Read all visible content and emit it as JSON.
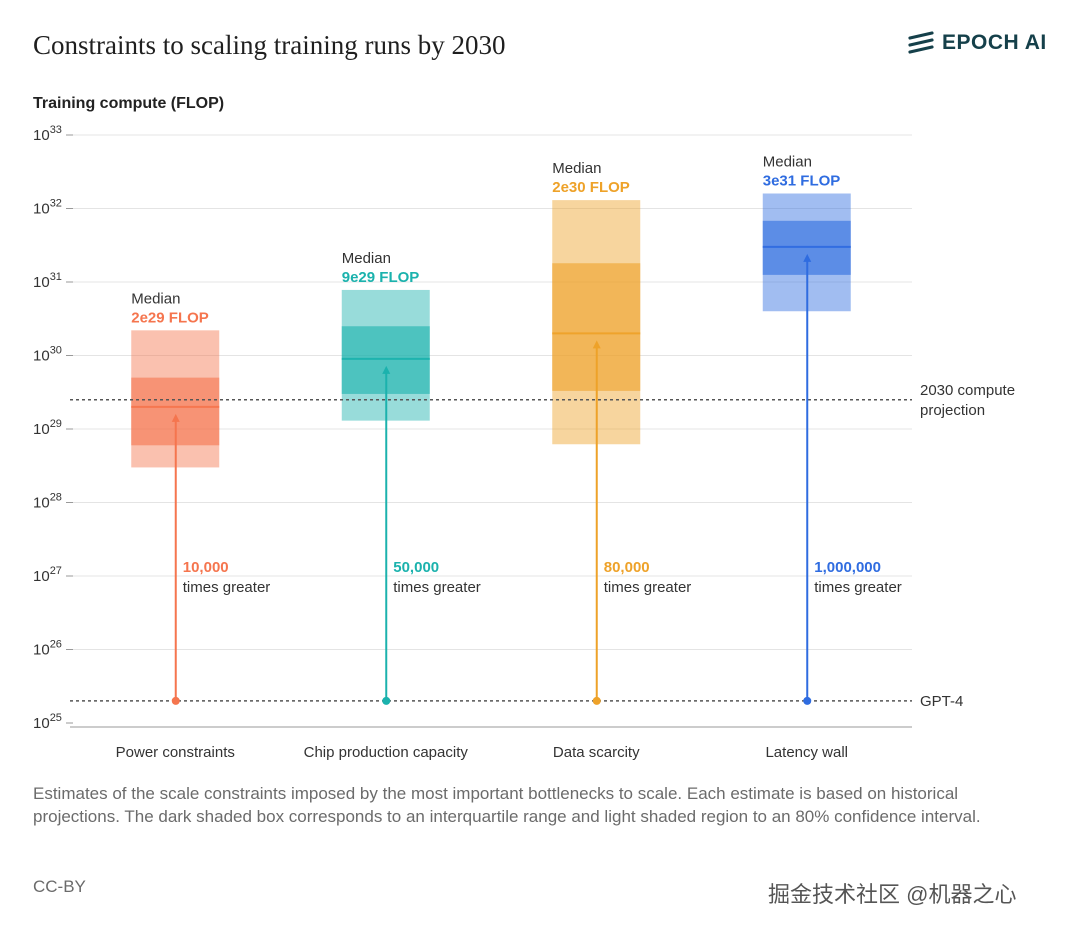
{
  "title": "Constraints to scaling training runs by 2030",
  "logo_text": "EPOCH AI",
  "caption": "Estimates of the scale constraints imposed by the most important bottlenecks to scale. Each estimate is based on historical projections. The dark shaded box corresponds to an interquartile range and light shaded region to an 80% confidence interval.",
  "license": "CC-BY",
  "watermark": "掘金技术社区 @机器之心",
  "chart_data": {
    "type": "box",
    "ylabel": "Training compute (FLOP)",
    "yscale": "log",
    "ylim_exponent": [
      25,
      33
    ],
    "yticks": [
      25,
      26,
      27,
      28,
      29,
      30,
      31,
      32,
      33
    ],
    "categories": [
      "Power constraints",
      "Chip production capacity",
      "Data scarcity",
      "Latency wall"
    ],
    "series": [
      {
        "category": "Power constraints",
        "color": "#f5754e",
        "median": 2e+29,
        "median_label": "2e29 FLOP",
        "iqr": [
          6e+28,
          5e+29
        ],
        "ci80": [
          3e+28,
          2.2e+30
        ],
        "multiplier": "10,000"
      },
      {
        "category": "Chip production capacity",
        "color": "#1bb2ad",
        "median": 9e+29,
        "median_label": "9e29 FLOP",
        "iqr": [
          3e+29,
          2.5e+30
        ],
        "ci80": [
          1.3e+29,
          7.8e+30
        ],
        "multiplier": "50,000"
      },
      {
        "category": "Data scarcity",
        "color": "#eea229",
        "median": 2e+30,
        "median_label": "2e30 FLOP",
        "iqr": [
          3.3e+29,
          1.8e+31
        ],
        "ci80": [
          6.2e+28,
          1.3e+32
        ],
        "multiplier": "80,000"
      },
      {
        "category": "Latency wall",
        "color": "#2f6ce0",
        "median": 3e+31,
        "median_label": "3e31 FLOP",
        "iqr": [
          1.25e+31,
          6.8e+31
        ],
        "ci80": [
          4e+30,
          1.6e+32
        ],
        "multiplier": "1,000,000"
      }
    ],
    "reference_lines": [
      {
        "label": "2030 compute projection",
        "label_lines": [
          "2030 compute",
          "projection"
        ],
        "value": 2.5e+29
      },
      {
        "label": "GPT-4",
        "label_lines": [
          "GPT-4"
        ],
        "value": 2e+25
      }
    ],
    "median_prefix": "Median",
    "times_suffix": "times greater",
    "grid": true
  }
}
